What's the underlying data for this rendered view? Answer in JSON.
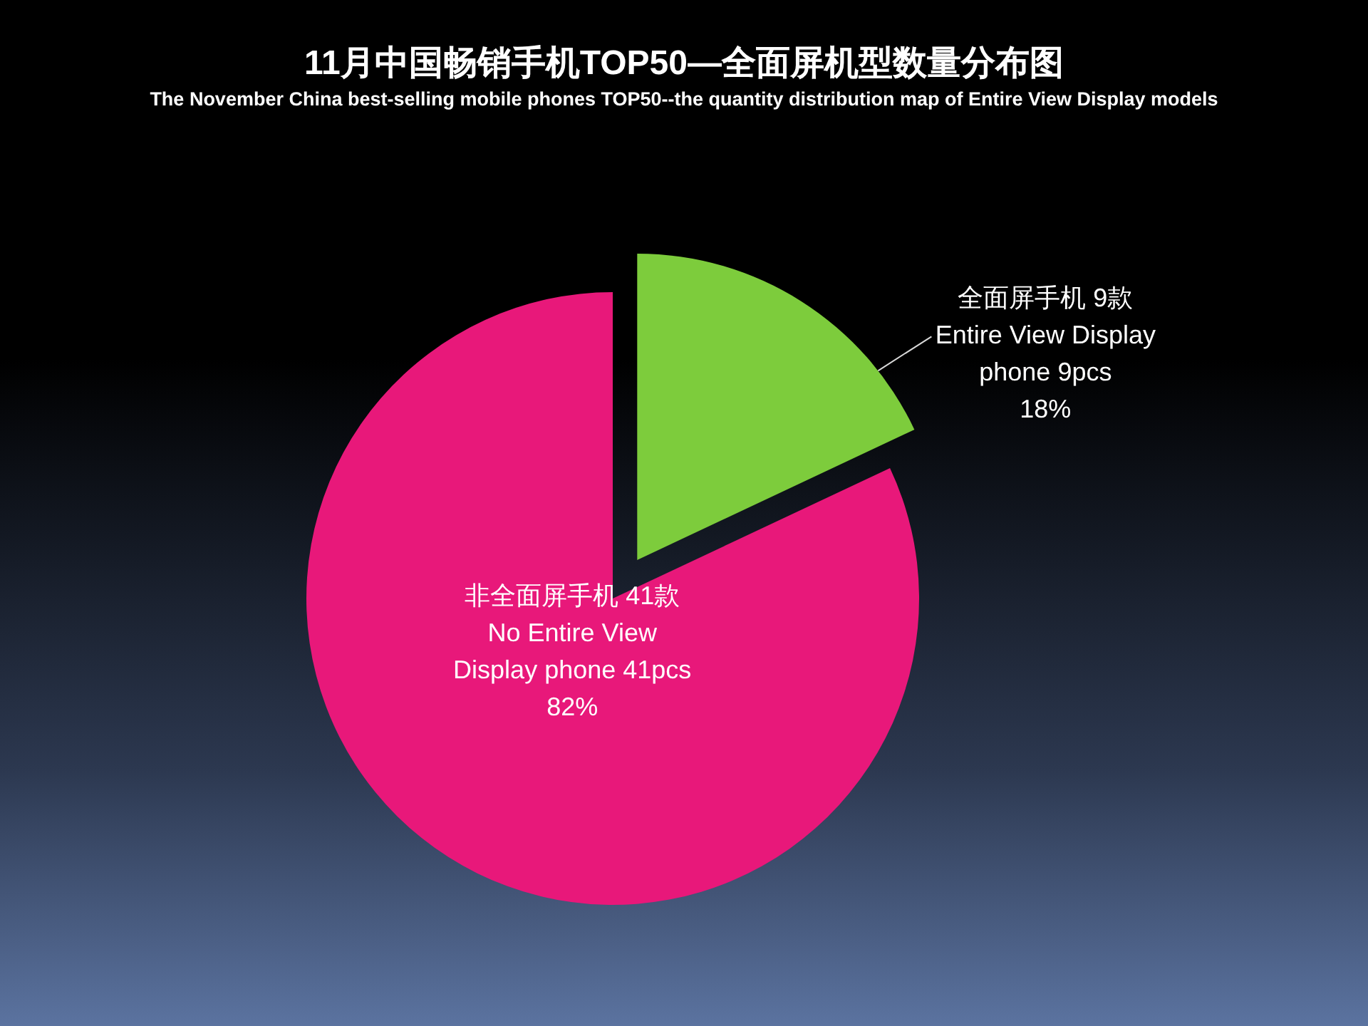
{
  "chart_data": {
    "type": "pie",
    "title": "11月中国畅销手机TOP50—全面屏机型数量分布图",
    "subtitle": "The November China best-selling mobile phones TOP50--the quantity distribution map of Entire View Display models",
    "categories": [
      "全面屏手机 9款\nEntire View Display\nphone 9pcs",
      "非全面屏手机  41款\nNo Entire View\nDisplay phone 41pcs"
    ],
    "values": [
      18,
      82
    ],
    "value_labels": [
      "18%",
      "82%"
    ],
    "colors": [
      "#7dcc3c",
      "#e8187a"
    ]
  }
}
